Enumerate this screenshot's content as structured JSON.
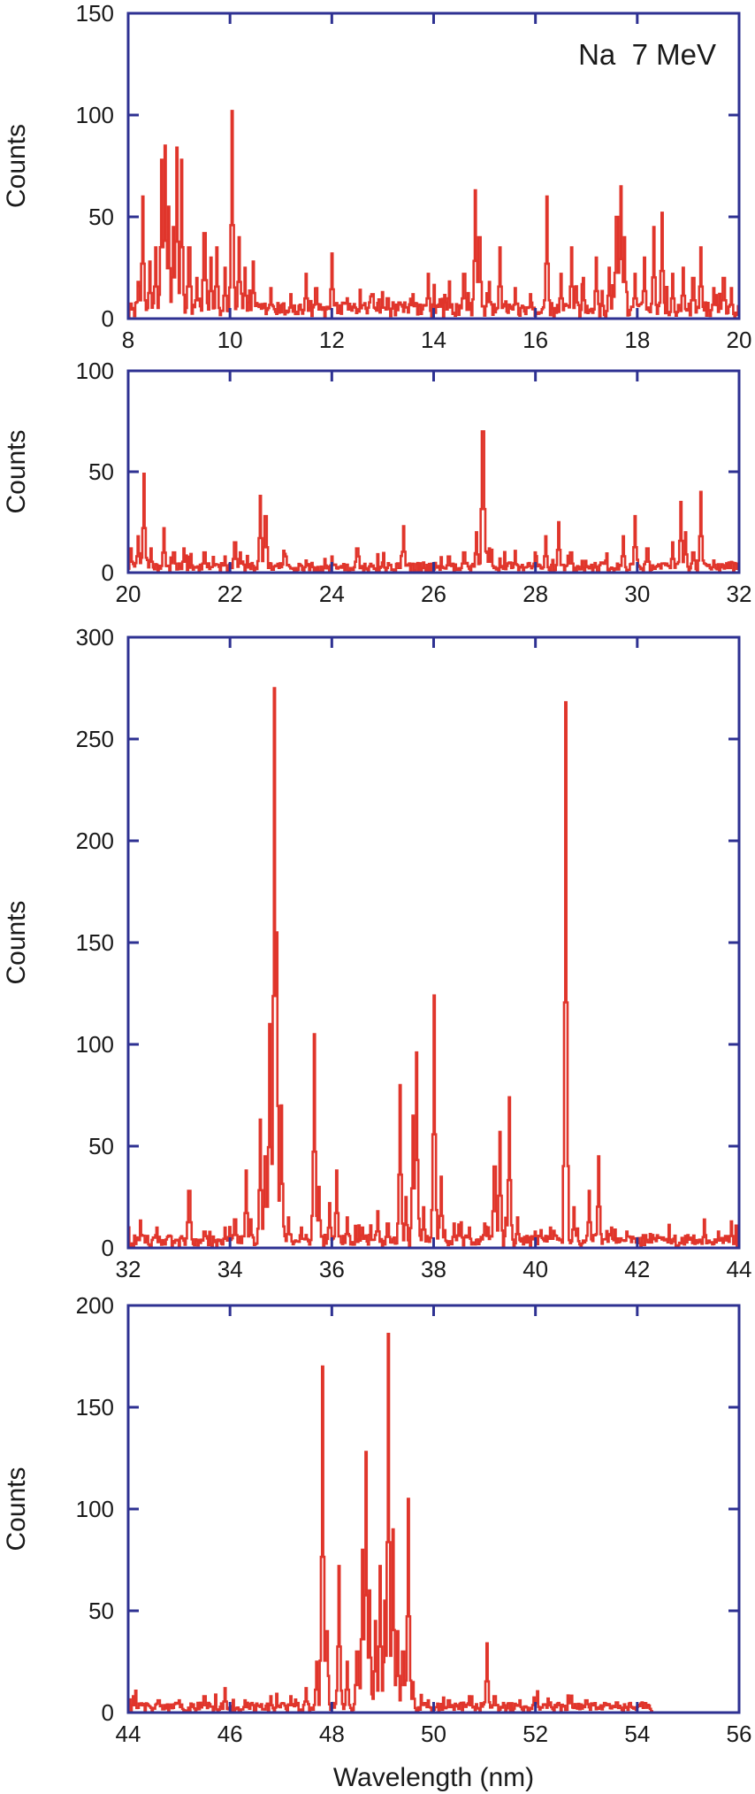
{
  "chart_data": [
    {
      "type": "line",
      "annotation": "Na  7 MeV",
      "xlabel": "",
      "ylabel": "Counts",
      "xlim": [
        8,
        20
      ],
      "ylim": [
        0,
        150
      ],
      "xticks": [
        8,
        10,
        12,
        14,
        16,
        18,
        20
      ],
      "yticks": [
        0,
        50,
        100,
        150
      ],
      "baseline": 5,
      "peaks": [
        [
          8.2,
          18
        ],
        [
          8.28,
          60
        ],
        [
          8.42,
          28
        ],
        [
          8.55,
          35
        ],
        [
          8.65,
          78
        ],
        [
          8.72,
          85
        ],
        [
          8.8,
          55
        ],
        [
          8.88,
          45
        ],
        [
          8.95,
          84
        ],
        [
          9.05,
          78
        ],
        [
          9.2,
          35
        ],
        [
          9.35,
          20
        ],
        [
          9.5,
          42
        ],
        [
          9.62,
          30
        ],
        [
          9.75,
          35
        ],
        [
          9.9,
          25
        ],
        [
          10.05,
          102
        ],
        [
          10.18,
          40
        ],
        [
          10.3,
          25
        ],
        [
          10.45,
          28
        ],
        [
          10.8,
          15
        ],
        [
          11.2,
          12
        ],
        [
          11.5,
          22
        ],
        [
          11.7,
          15
        ],
        [
          12.0,
          32
        ],
        [
          12.3,
          10
        ],
        [
          12.8,
          12
        ],
        [
          13.1,
          10
        ],
        [
          13.6,
          12
        ],
        [
          13.9,
          22
        ],
        [
          14.3,
          10
        ],
        [
          14.6,
          22
        ],
        [
          14.82,
          63
        ],
        [
          14.9,
          40
        ],
        [
          15.1,
          18
        ],
        [
          15.3,
          35
        ],
        [
          15.6,
          15
        ],
        [
          15.9,
          12
        ],
        [
          16.22,
          60
        ],
        [
          16.5,
          22
        ],
        [
          16.72,
          35
        ],
        [
          16.95,
          20
        ],
        [
          17.2,
          30
        ],
        [
          17.45,
          25
        ],
        [
          17.6,
          50
        ],
        [
          17.68,
          65
        ],
        [
          17.75,
          40
        ],
        [
          17.95,
          22
        ],
        [
          18.15,
          30
        ],
        [
          18.32,
          45
        ],
        [
          18.48,
          52
        ],
        [
          18.7,
          22
        ],
        [
          18.9,
          25
        ],
        [
          19.1,
          20
        ],
        [
          19.25,
          35
        ],
        [
          19.5,
          15
        ],
        [
          19.7,
          20
        ],
        [
          19.85,
          15
        ]
      ]
    },
    {
      "type": "line",
      "xlabel": "",
      "ylabel": "Counts",
      "xlim": [
        20,
        32
      ],
      "ylim": [
        0,
        100
      ],
      "xticks": [
        20,
        22,
        24,
        26,
        28,
        30,
        32
      ],
      "yticks": [
        0,
        50,
        100
      ],
      "baseline": 3,
      "peaks": [
        [
          20.05,
          12
        ],
        [
          20.2,
          18
        ],
        [
          20.32,
          49
        ],
        [
          20.45,
          12
        ],
        [
          20.7,
          22
        ],
        [
          20.9,
          10
        ],
        [
          21.1,
          12
        ],
        [
          21.5,
          10
        ],
        [
          21.9,
          8
        ],
        [
          22.1,
          15
        ],
        [
          22.2,
          10
        ],
        [
          22.6,
          38
        ],
        [
          22.7,
          28
        ],
        [
          23.1,
          8
        ],
        [
          23.5,
          6
        ],
        [
          24.0,
          8
        ],
        [
          24.5,
          12
        ],
        [
          25.0,
          5
        ],
        [
          25.42,
          23
        ],
        [
          25.8,
          5
        ],
        [
          26.3,
          8
        ],
        [
          26.6,
          10
        ],
        [
          26.85,
          20
        ],
        [
          26.97,
          70
        ],
        [
          27.1,
          12
        ],
        [
          27.5,
          5
        ],
        [
          28.0,
          10
        ],
        [
          28.2,
          18
        ],
        [
          28.45,
          25
        ],
        [
          28.7,
          10
        ],
        [
          29.3,
          5
        ],
        [
          29.72,
          18
        ],
        [
          29.95,
          28
        ],
        [
          30.2,
          12
        ],
        [
          30.7,
          15
        ],
        [
          30.85,
          35
        ],
        [
          30.95,
          20
        ],
        [
          31.1,
          10
        ],
        [
          31.25,
          40
        ],
        [
          31.5,
          6
        ],
        [
          31.8,
          5
        ]
      ]
    },
    {
      "type": "line",
      "xlabel": "",
      "ylabel": "Counts",
      "xlim": [
        32,
        44
      ],
      "ylim": [
        0,
        300
      ],
      "xticks": [
        32,
        34,
        36,
        38,
        40,
        42,
        44
      ],
      "yticks": [
        0,
        50,
        100,
        150,
        200,
        250,
        300
      ],
      "baseline": 4,
      "peaks": [
        [
          32.3,
          6
        ],
        [
          32.8,
          6
        ],
        [
          33.2,
          28
        ],
        [
          33.5,
          8
        ],
        [
          33.9,
          10
        ],
        [
          34.1,
          14
        ],
        [
          34.32,
          38
        ],
        [
          34.42,
          14
        ],
        [
          34.6,
          63
        ],
        [
          34.7,
          45
        ],
        [
          34.78,
          110
        ],
        [
          34.87,
          275
        ],
        [
          34.92,
          155
        ],
        [
          35.02,
          70
        ],
        [
          35.15,
          15
        ],
        [
          35.4,
          10
        ],
        [
          35.65,
          105
        ],
        [
          35.75,
          30
        ],
        [
          35.95,
          22
        ],
        [
          36.1,
          38
        ],
        [
          36.3,
          15
        ],
        [
          36.6,
          10
        ],
        [
          36.9,
          18
        ],
        [
          37.1,
          12
        ],
        [
          37.35,
          80
        ],
        [
          37.45,
          25
        ],
        [
          37.6,
          65
        ],
        [
          37.67,
          96
        ],
        [
          37.8,
          20
        ],
        [
          38.02,
          124
        ],
        [
          38.15,
          35
        ],
        [
          38.4,
          12
        ],
        [
          38.7,
          10
        ],
        [
          39.0,
          12
        ],
        [
          39.2,
          40
        ],
        [
          39.3,
          57
        ],
        [
          39.48,
          74
        ],
        [
          39.65,
          15
        ],
        [
          40.0,
          8
        ],
        [
          40.3,
          10
        ],
        [
          40.6,
          268
        ],
        [
          40.75,
          20
        ],
        [
          41.05,
          28
        ],
        [
          41.25,
          45
        ],
        [
          41.5,
          10
        ],
        [
          41.8,
          8
        ],
        [
          42.3,
          6
        ],
        [
          43.0,
          6
        ],
        [
          43.6,
          8
        ],
        [
          43.85,
          13
        ]
      ]
    },
    {
      "type": "line",
      "xlabel": "Wavelength (nm)",
      "ylabel": "Counts",
      "xlim": [
        44,
        56
      ],
      "ylim": [
        0,
        200
      ],
      "xticks": [
        44,
        46,
        48,
        50,
        52,
        54,
        56
      ],
      "yticks": [
        0,
        50,
        100,
        150,
        200
      ],
      "baseline": 3,
      "data_end": 54.3,
      "peaks": [
        [
          44.1,
          8
        ],
        [
          44.6,
          6
        ],
        [
          45.0,
          6
        ],
        [
          45.5,
          8
        ],
        [
          45.9,
          12
        ],
        [
          46.3,
          6
        ],
        [
          46.8,
          8
        ],
        [
          47.2,
          8
        ],
        [
          47.5,
          12
        ],
        [
          47.7,
          25
        ],
        [
          47.82,
          170
        ],
        [
          47.9,
          40
        ],
        [
          48.15,
          72
        ],
        [
          48.3,
          25
        ],
        [
          48.5,
          30
        ],
        [
          48.6,
          80
        ],
        [
          48.68,
          128
        ],
        [
          48.75,
          60
        ],
        [
          48.85,
          45
        ],
        [
          48.95,
          72
        ],
        [
          49.05,
          55
        ],
        [
          49.12,
          186
        ],
        [
          49.2,
          90
        ],
        [
          49.3,
          40
        ],
        [
          49.4,
          30
        ],
        [
          49.5,
          105
        ],
        [
          49.6,
          15
        ],
        [
          49.9,
          6
        ],
        [
          50.3,
          6
        ],
        [
          50.7,
          8
        ],
        [
          51.05,
          34
        ],
        [
          51.2,
          8
        ],
        [
          51.7,
          6
        ],
        [
          52.3,
          5
        ],
        [
          53.0,
          6
        ],
        [
          53.6,
          5
        ],
        [
          54.1,
          5
        ]
      ]
    }
  ]
}
